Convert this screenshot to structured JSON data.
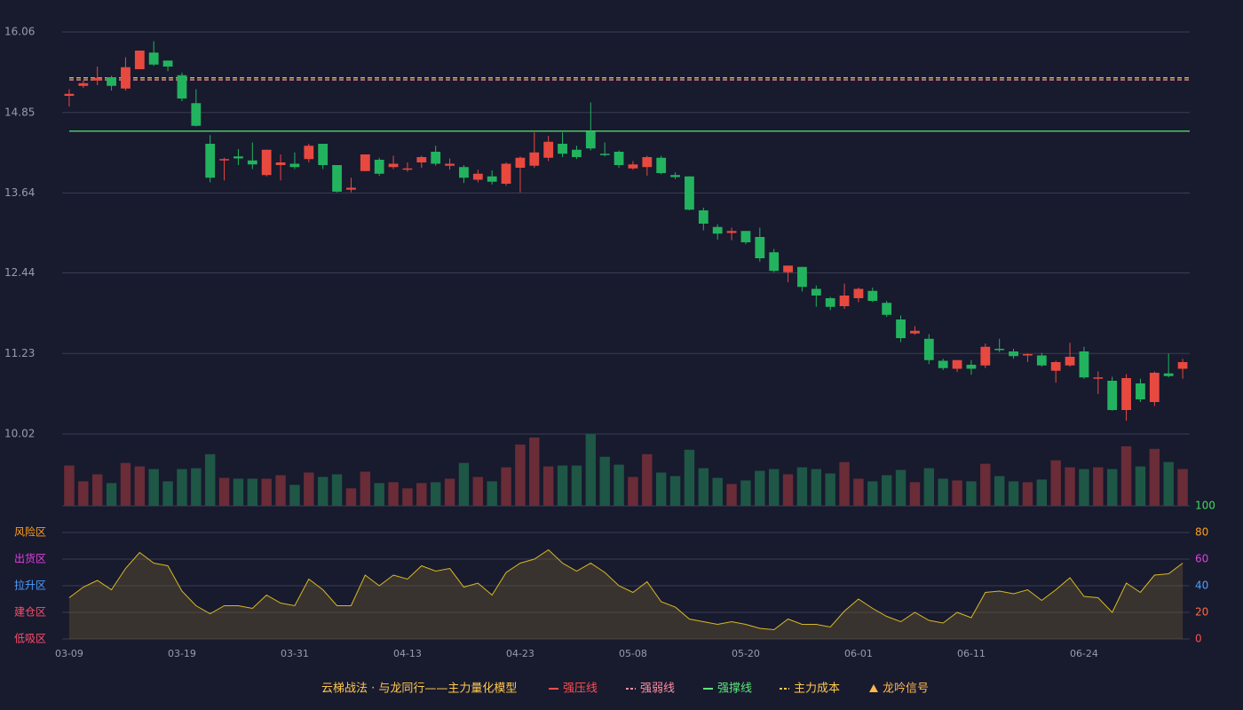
{
  "chart_data": {
    "type": "candlestick",
    "categories": [
      "03-09",
      null,
      null,
      null,
      null,
      null,
      null,
      null,
      "03-19",
      null,
      null,
      null,
      null,
      null,
      null,
      null,
      "03-31",
      null,
      null,
      null,
      null,
      null,
      null,
      null,
      "04-13",
      null,
      null,
      null,
      null,
      null,
      null,
      null,
      "04-23",
      null,
      null,
      null,
      null,
      null,
      null,
      null,
      "05-08",
      null,
      null,
      null,
      null,
      null,
      null,
      null,
      "05-20",
      null,
      null,
      null,
      null,
      null,
      null,
      null,
      "06-01",
      null,
      null,
      null,
      null,
      null,
      null,
      null,
      "06-11",
      null,
      null,
      null,
      null,
      null,
      null,
      null,
      "06-24",
      null,
      null,
      null,
      null,
      null,
      null,
      null
    ],
    "open": [
      15.1,
      15.25,
      15.33,
      15.38,
      15.21,
      15.5,
      15.75,
      15.63,
      15.41,
      14.99,
      14.38,
      14.13,
      14.19,
      14.13,
      13.91,
      14.06,
      14.08,
      14.15,
      14.38,
      14.06,
      13.69,
      13.97,
      14.14,
      14.03,
      13.99,
      14.1,
      14.26,
      14.05,
      14.03,
      13.84,
      13.89,
      13.78,
      14.02,
      14.05,
      14.17,
      14.38,
      14.29,
      14.56,
      14.23,
      14.26,
      14.01,
      14.03,
      14.17,
      13.91,
      13.89,
      13.38,
      13.13,
      13.04,
      13.07,
      12.98,
      12.75,
      12.45,
      12.53,
      12.2,
      12.06,
      11.94,
      12.06,
      12.17,
      11.99,
      11.74,
      11.53,
      11.45,
      11.12,
      11.0,
      11.06,
      11.05,
      11.3,
      11.26,
      11.2,
      11.2,
      10.97,
      11.05,
      11.26,
      10.85,
      10.82,
      10.38,
      10.78,
      10.5,
      10.93,
      11.0
    ],
    "close": [
      15.13,
      15.29,
      15.37,
      15.25,
      15.53,
      15.78,
      15.57,
      15.54,
      15.06,
      14.65,
      13.87,
      14.15,
      14.16,
      14.07,
      14.29,
      14.1,
      14.03,
      14.35,
      14.06,
      13.66,
      13.72,
      14.22,
      13.93,
      14.08,
      14.01,
      14.18,
      14.08,
      14.08,
      13.87,
      13.93,
      13.81,
      14.08,
      14.17,
      14.25,
      14.41,
      14.23,
      14.18,
      14.31,
      14.21,
      14.06,
      14.07,
      14.18,
      13.94,
      13.88,
      13.39,
      13.18,
      13.03,
      13.07,
      12.9,
      12.66,
      12.47,
      12.55,
      12.23,
      12.1,
      11.93,
      12.1,
      12.2,
      12.02,
      11.81,
      11.46,
      11.57,
      11.13,
      11.01,
      11.13,
      11.0,
      11.33,
      11.28,
      11.19,
      11.22,
      11.05,
      11.1,
      11.18,
      10.87,
      10.87,
      10.38,
      10.86,
      10.54,
      10.94,
      10.89,
      11.1
    ],
    "high": [
      15.2,
      15.33,
      15.54,
      15.4,
      15.68,
      15.78,
      15.92,
      15.63,
      15.45,
      15.2,
      14.51,
      14.17,
      14.3,
      14.4,
      14.29,
      14.22,
      14.25,
      14.38,
      14.38,
      14.06,
      13.87,
      14.22,
      14.17,
      14.2,
      14.1,
      14.2,
      14.35,
      14.16,
      14.06,
      13.99,
      13.98,
      14.1,
      14.19,
      14.55,
      14.5,
      14.55,
      14.35,
      15.0,
      14.4,
      14.28,
      14.12,
      14.2,
      14.2,
      13.95,
      13.89,
      13.42,
      13.17,
      13.12,
      13.07,
      13.12,
      12.8,
      12.55,
      12.53,
      12.25,
      12.08,
      12.28,
      12.22,
      12.22,
      12.02,
      11.8,
      11.64,
      11.52,
      11.15,
      11.13,
      11.13,
      11.38,
      11.45,
      11.3,
      11.23,
      11.24,
      11.12,
      11.39,
      11.33,
      10.96,
      10.88,
      10.92,
      10.85,
      10.96,
      11.23,
      11.15
    ],
    "low": [
      14.94,
      15.22,
      15.26,
      15.18,
      15.18,
      15.5,
      15.55,
      15.47,
      15.02,
      14.64,
      13.8,
      13.83,
      14.06,
      14.0,
      13.89,
      13.83,
      14.0,
      14.1,
      14.0,
      13.65,
      13.65,
      13.97,
      13.9,
      14.0,
      13.96,
      14.02,
      14.05,
      13.99,
      13.79,
      13.8,
      13.77,
      13.75,
      13.65,
      14.02,
      14.12,
      14.18,
      14.15,
      14.28,
      14.19,
      14.02,
      13.99,
      13.9,
      13.92,
      13.85,
      13.38,
      13.08,
      12.94,
      12.93,
      12.87,
      12.61,
      12.45,
      12.3,
      12.16,
      11.93,
      11.88,
      11.9,
      12.0,
      12.0,
      11.78,
      11.4,
      11.51,
      11.07,
      10.98,
      10.95,
      10.91,
      11.01,
      11.25,
      11.15,
      11.1,
      11.03,
      10.79,
      11.03,
      10.85,
      10.62,
      10.37,
      10.22,
      10.5,
      10.44,
      10.87,
      10.85
    ],
    "up_color": "#e8493f",
    "down_color": "#22b35e",
    "up_volume_color": "#6a2c37",
    "down_volume_color": "#1e5745",
    "volume": [
      46,
      28,
      36,
      26,
      49,
      45,
      42,
      28,
      42,
      43,
      59,
      32,
      31,
      31,
      31,
      35,
      24,
      38,
      33,
      36,
      20,
      39,
      26,
      27,
      20,
      26,
      27,
      31,
      49,
      33,
      28,
      44,
      70,
      78,
      45,
      46,
      46,
      82,
      56,
      47,
      33,
      59,
      38,
      34,
      64,
      43,
      32,
      25,
      29,
      40,
      42,
      36,
      44,
      42,
      37,
      50,
      31,
      28,
      35,
      41,
      27,
      43,
      31,
      29,
      28,
      48,
      34,
      28,
      27,
      30,
      52,
      44,
      42,
      44,
      42,
      68,
      45,
      65,
      50,
      42
    ],
    "ylim": [
      10.02,
      16.06
    ],
    "yticks": [
      10.02,
      11.23,
      12.44,
      13.64,
      14.85,
      16.06
    ],
    "grid": true,
    "lines": [
      {
        "name": "强压线",
        "color": "#ff4d4d",
        "style": "solid"
      },
      {
        "name": "强弱线",
        "color": "#ff8fa3",
        "style": "dashed",
        "value": 15.34
      },
      {
        "name": "强撑线",
        "color": "#5ee37a",
        "style": "solid",
        "value": 14.57
      },
      {
        "name": "主力成本",
        "color": "#ffc94d",
        "style": "dashed",
        "value": 15.37
      }
    ],
    "signal": {
      "name": "龙吟信号",
      "color": "#ffb84d"
    },
    "legend_title": "云梯战法 · 与龙同行——主力量化模型",
    "indicator": {
      "values": [
        31,
        39,
        44,
        37,
        53,
        65,
        57,
        55,
        36,
        25,
        19,
        25,
        25,
        23,
        33,
        27,
        25,
        45,
        37,
        25,
        25,
        48,
        40,
        48,
        45,
        55,
        51,
        53,
        39,
        42,
        33,
        50,
        57,
        60,
        67,
        57,
        51,
        57,
        50,
        40,
        35,
        43,
        28,
        24,
        15,
        13,
        11,
        13,
        11,
        8,
        7,
        15,
        11,
        11,
        9,
        21,
        30,
        23,
        17,
        13,
        20,
        14,
        12,
        20,
        16,
        35,
        36,
        34,
        37,
        29,
        37,
        46,
        32,
        31,
        20,
        42,
        35,
        48,
        49,
        57
      ],
      "color": "#d9b823",
      "ylim": [
        0,
        100
      ],
      "yticks": [
        0,
        20,
        40,
        60,
        80,
        100
      ],
      "tick_colors": [
        "#ff4d4d",
        "#ff6a3d",
        "#4d9fff",
        "#e040e0",
        "#ff9f1a",
        "#3ddc5a"
      ],
      "zones": [
        {
          "label": "低吸区",
          "value": 0,
          "color": "#ff4d6a"
        },
        {
          "label": "建仓区",
          "value": 20,
          "color": "#ff4d6a"
        },
        {
          "label": "拉升区",
          "value": 40,
          "color": "#4d9fff"
        },
        {
          "label": "出货区",
          "value": 60,
          "color": "#e040e0"
        },
        {
          "label": "风险区",
          "value": 80,
          "color": "#ff9f1a"
        }
      ]
    }
  }
}
